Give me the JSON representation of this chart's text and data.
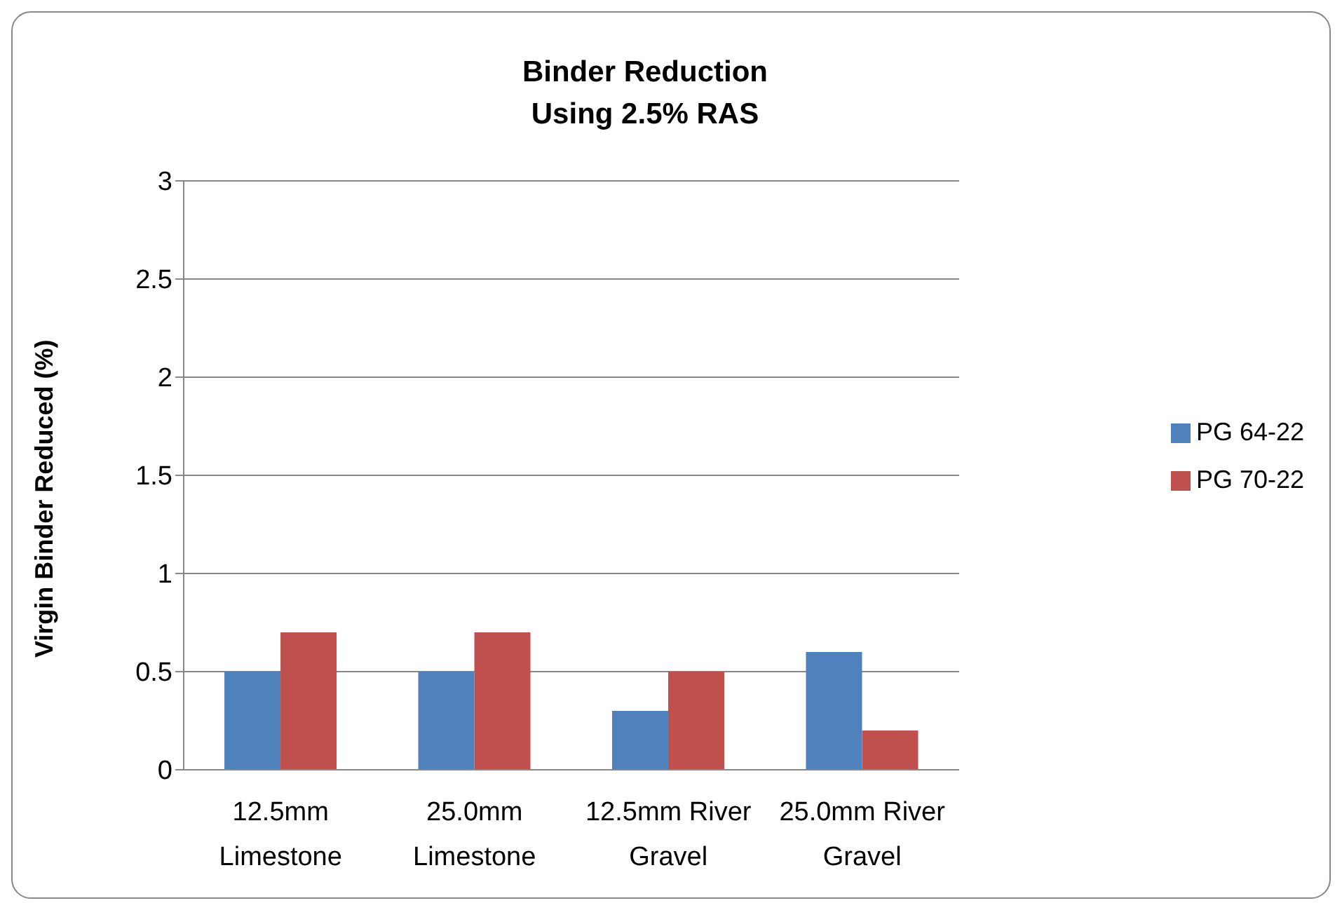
{
  "chart_data": {
    "type": "bar",
    "title": "Binder Reduction\nUsing 2.5% RAS",
    "ylabel": "Virgin Binder Reduced (%)",
    "categories": [
      "12.5mm Limestone",
      "25.0mm Limestone",
      "12.5mm River Gravel",
      "25.0mm River Gravel"
    ],
    "series": [
      {
        "name": "PG 64-22",
        "color": "#4f81bd",
        "values": [
          0.5,
          0.5,
          0.3,
          0.6
        ]
      },
      {
        "name": "PG 70-22",
        "color": "#c0504d",
        "values": [
          0.7,
          0.7,
          0.5,
          0.2
        ]
      }
    ],
    "ylim": [
      0,
      3
    ],
    "yticks": [
      0,
      0.5,
      1,
      1.5,
      2,
      2.5,
      3
    ],
    "grid": "y",
    "legend": "right"
  }
}
